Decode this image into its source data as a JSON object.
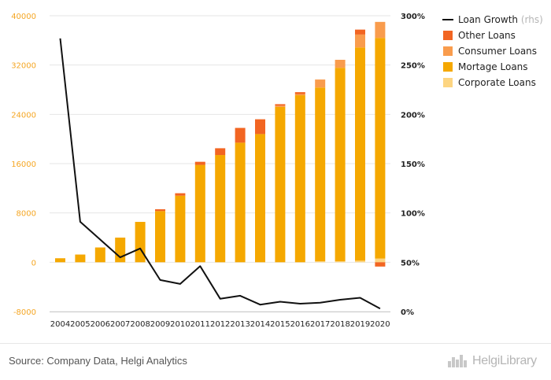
{
  "chart_data": {
    "type": "bar",
    "stacked": true,
    "categories": [
      "2004",
      "2005",
      "2006",
      "2007",
      "2008",
      "2009",
      "2010",
      "2011",
      "2012",
      "2013",
      "2014",
      "2015",
      "2016",
      "2017",
      "2018",
      "2019",
      "2020"
    ],
    "series": [
      {
        "name": "Corporate Loans",
        "color": "#fdd581",
        "axis": "left",
        "values": [
          0,
          0,
          0,
          0,
          0,
          0,
          0,
          0,
          0,
          0,
          0,
          0,
          0,
          150,
          150,
          250,
          600
        ]
      },
      {
        "name": "Mortage Loans",
        "color": "#f5a800",
        "axis": "left",
        "values": [
          650,
          1250,
          2400,
          4000,
          6550,
          8300,
          10800,
          15800,
          17400,
          19400,
          20800,
          25200,
          27100,
          28200,
          31400,
          34600,
          35800
        ]
      },
      {
        "name": "Consumer Loans",
        "color": "#f99c4d",
        "axis": "left",
        "values": [
          0,
          0,
          0,
          0,
          0,
          0,
          0,
          0,
          0,
          0,
          0,
          200,
          200,
          1300,
          1300,
          2100,
          2600
        ]
      },
      {
        "name": "Other Loans",
        "color": "#f26522",
        "axis": "left",
        "values": [
          0,
          0,
          0,
          0,
          0,
          300,
          400,
          500,
          1100,
          2400,
          2400,
          250,
          300,
          0,
          0,
          800,
          -700
        ]
      },
      {
        "name": "Loan Growth",
        "color": "#111111",
        "axis": "right",
        "type": "line",
        "values": [
          277,
          91,
          73,
          55,
          64,
          32,
          28,
          46,
          13,
          16,
          7,
          10,
          8,
          9,
          12,
          14,
          3
        ]
      }
    ],
    "ylim_left": [
      -8000,
      40000
    ],
    "yticks_left": [
      "40000",
      "32000",
      "24000",
      "16000",
      "8000",
      "0",
      "-8000"
    ],
    "ylim_right": [
      0,
      300
    ],
    "yticks_right": [
      "300%",
      "250%",
      "200%",
      "150%",
      "100%",
      "50%",
      "0%"
    ],
    "legend": {
      "position": "top-right",
      "items": [
        {
          "label": "Loan Growth",
          "note": "(rhs)",
          "kind": "line",
          "color": "#111111"
        },
        {
          "label": "Other Loans",
          "kind": "box",
          "color": "#f26522"
        },
        {
          "label": "Consumer Loans",
          "kind": "box",
          "color": "#f99c4d"
        },
        {
          "label": "Mortage Loans",
          "kind": "box",
          "color": "#f5a800"
        },
        {
          "label": "Corporate Loans",
          "kind": "box",
          "color": "#fdd581"
        }
      ]
    },
    "grid": true
  },
  "footer": {
    "source": "Source: Company Data, Helgi Analytics",
    "logo": "HelgiLibrary"
  }
}
